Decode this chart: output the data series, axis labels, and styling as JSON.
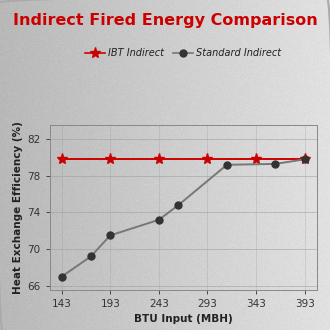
{
  "title": "Indirect Fired Energy Comparison",
  "title_color": "#cc0000",
  "xlabel": "BTU Input (MBH)",
  "ylabel": "Heat Exchange Efficiency (%)",
  "ibt_x": [
    143,
    193,
    243,
    293,
    343,
    393
  ],
  "ibt_y": [
    79.8,
    79.8,
    79.8,
    79.8,
    79.8,
    79.8
  ],
  "std_x": [
    143,
    173,
    193,
    243,
    263,
    313,
    363,
    393
  ],
  "std_y": [
    67.0,
    69.2,
    71.5,
    73.2,
    74.8,
    79.2,
    79.3,
    79.8
  ],
  "ibt_color": "#cc0000",
  "std_color": "#333333",
  "line_color_ibt": "#cc0000",
  "line_color_std": "#777777",
  "ylim": [
    65.5,
    83.5
  ],
  "yticks": [
    66,
    70,
    74,
    78,
    82
  ],
  "xticks": [
    143,
    193,
    243,
    293,
    343,
    393
  ],
  "legend_ibt": "IBT Indirect",
  "legend_std": "Standard Indirect",
  "grid_color": "#999999",
  "title_fontsize": 11.5,
  "label_fontsize": 7.5,
  "tick_fontsize": 7.5
}
